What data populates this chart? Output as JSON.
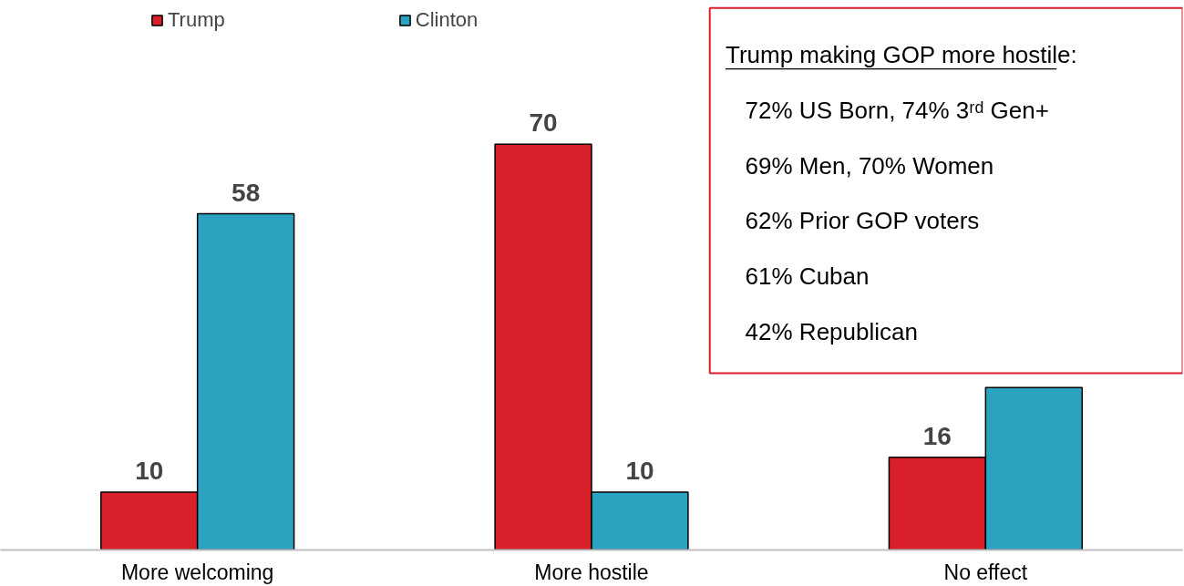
{
  "chart_data": {
    "type": "bar",
    "categories": [
      "More welcoming",
      "More hostile",
      "No effect"
    ],
    "series": [
      {
        "name": "Trump",
        "color": "#d9202a",
        "values": [
          10,
          70,
          16
        ],
        "value_labels": [
          "10",
          "70",
          "16"
        ]
      },
      {
        "name": "Clinton",
        "color": "#2ba3c0",
        "values": [
          58,
          10,
          28
        ],
        "value_labels": [
          "58",
          "10",
          null
        ]
      }
    ],
    "ylim": [
      0,
      94
    ],
    "annotations": [
      "Trump making GOP more hostile:",
      "72% US Born, 74% 3ʳᵈ Gen+",
      "69% Men, 70% Women",
      "62% Prior GOP voters",
      "61% Cuban",
      "42% Republican"
    ],
    "legend": "top left",
    "grid": false,
    "tick_labels": "x"
  }
}
